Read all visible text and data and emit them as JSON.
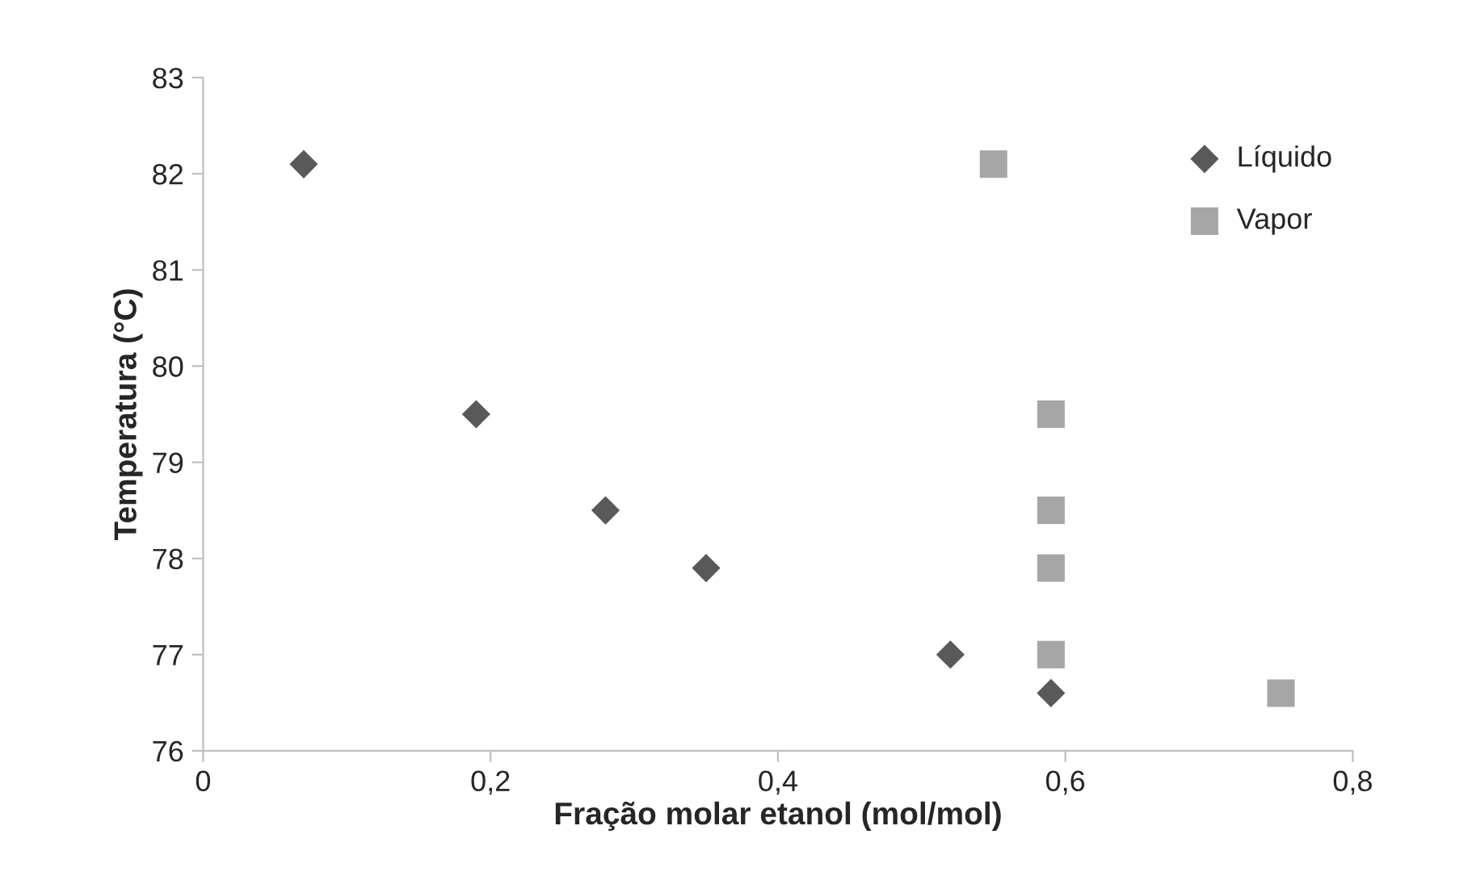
{
  "chart_data": {
    "type": "scatter",
    "xlabel": "Fração molar etanol (mol/mol)",
    "ylabel": "Temperatura (°C)",
    "xlim": [
      0,
      0.8
    ],
    "xticks": [
      0,
      {
        "value": 0.2,
        "label": "0,2"
      },
      {
        "value": 0.4,
        "label": "0,4"
      },
      {
        "value": 0.6,
        "label": "0,6"
      },
      {
        "value": 0.8,
        "label": "0,8"
      }
    ],
    "ylim": [
      76,
      83
    ],
    "yticks": [
      76,
      77,
      78,
      79,
      80,
      81,
      82,
      83
    ],
    "grid": false,
    "legend": "top right",
    "series": [
      {
        "name": "Líquido",
        "color": "#595959",
        "marker": "diamond",
        "x": [
          0.07,
          0.19,
          0.28,
          0.35,
          0.52,
          0.59
        ],
        "values": [
          82.1,
          79.5,
          78.5,
          77.9,
          77.0,
          76.6
        ]
      },
      {
        "name": "Vapor",
        "color": "#a6a6a6",
        "marker": "square",
        "x": [
          0.55,
          0.59,
          0.59,
          0.59,
          0.59,
          0.75
        ],
        "values": [
          82.1,
          79.5,
          78.5,
          77.9,
          77.0,
          76.6
        ]
      }
    ]
  }
}
